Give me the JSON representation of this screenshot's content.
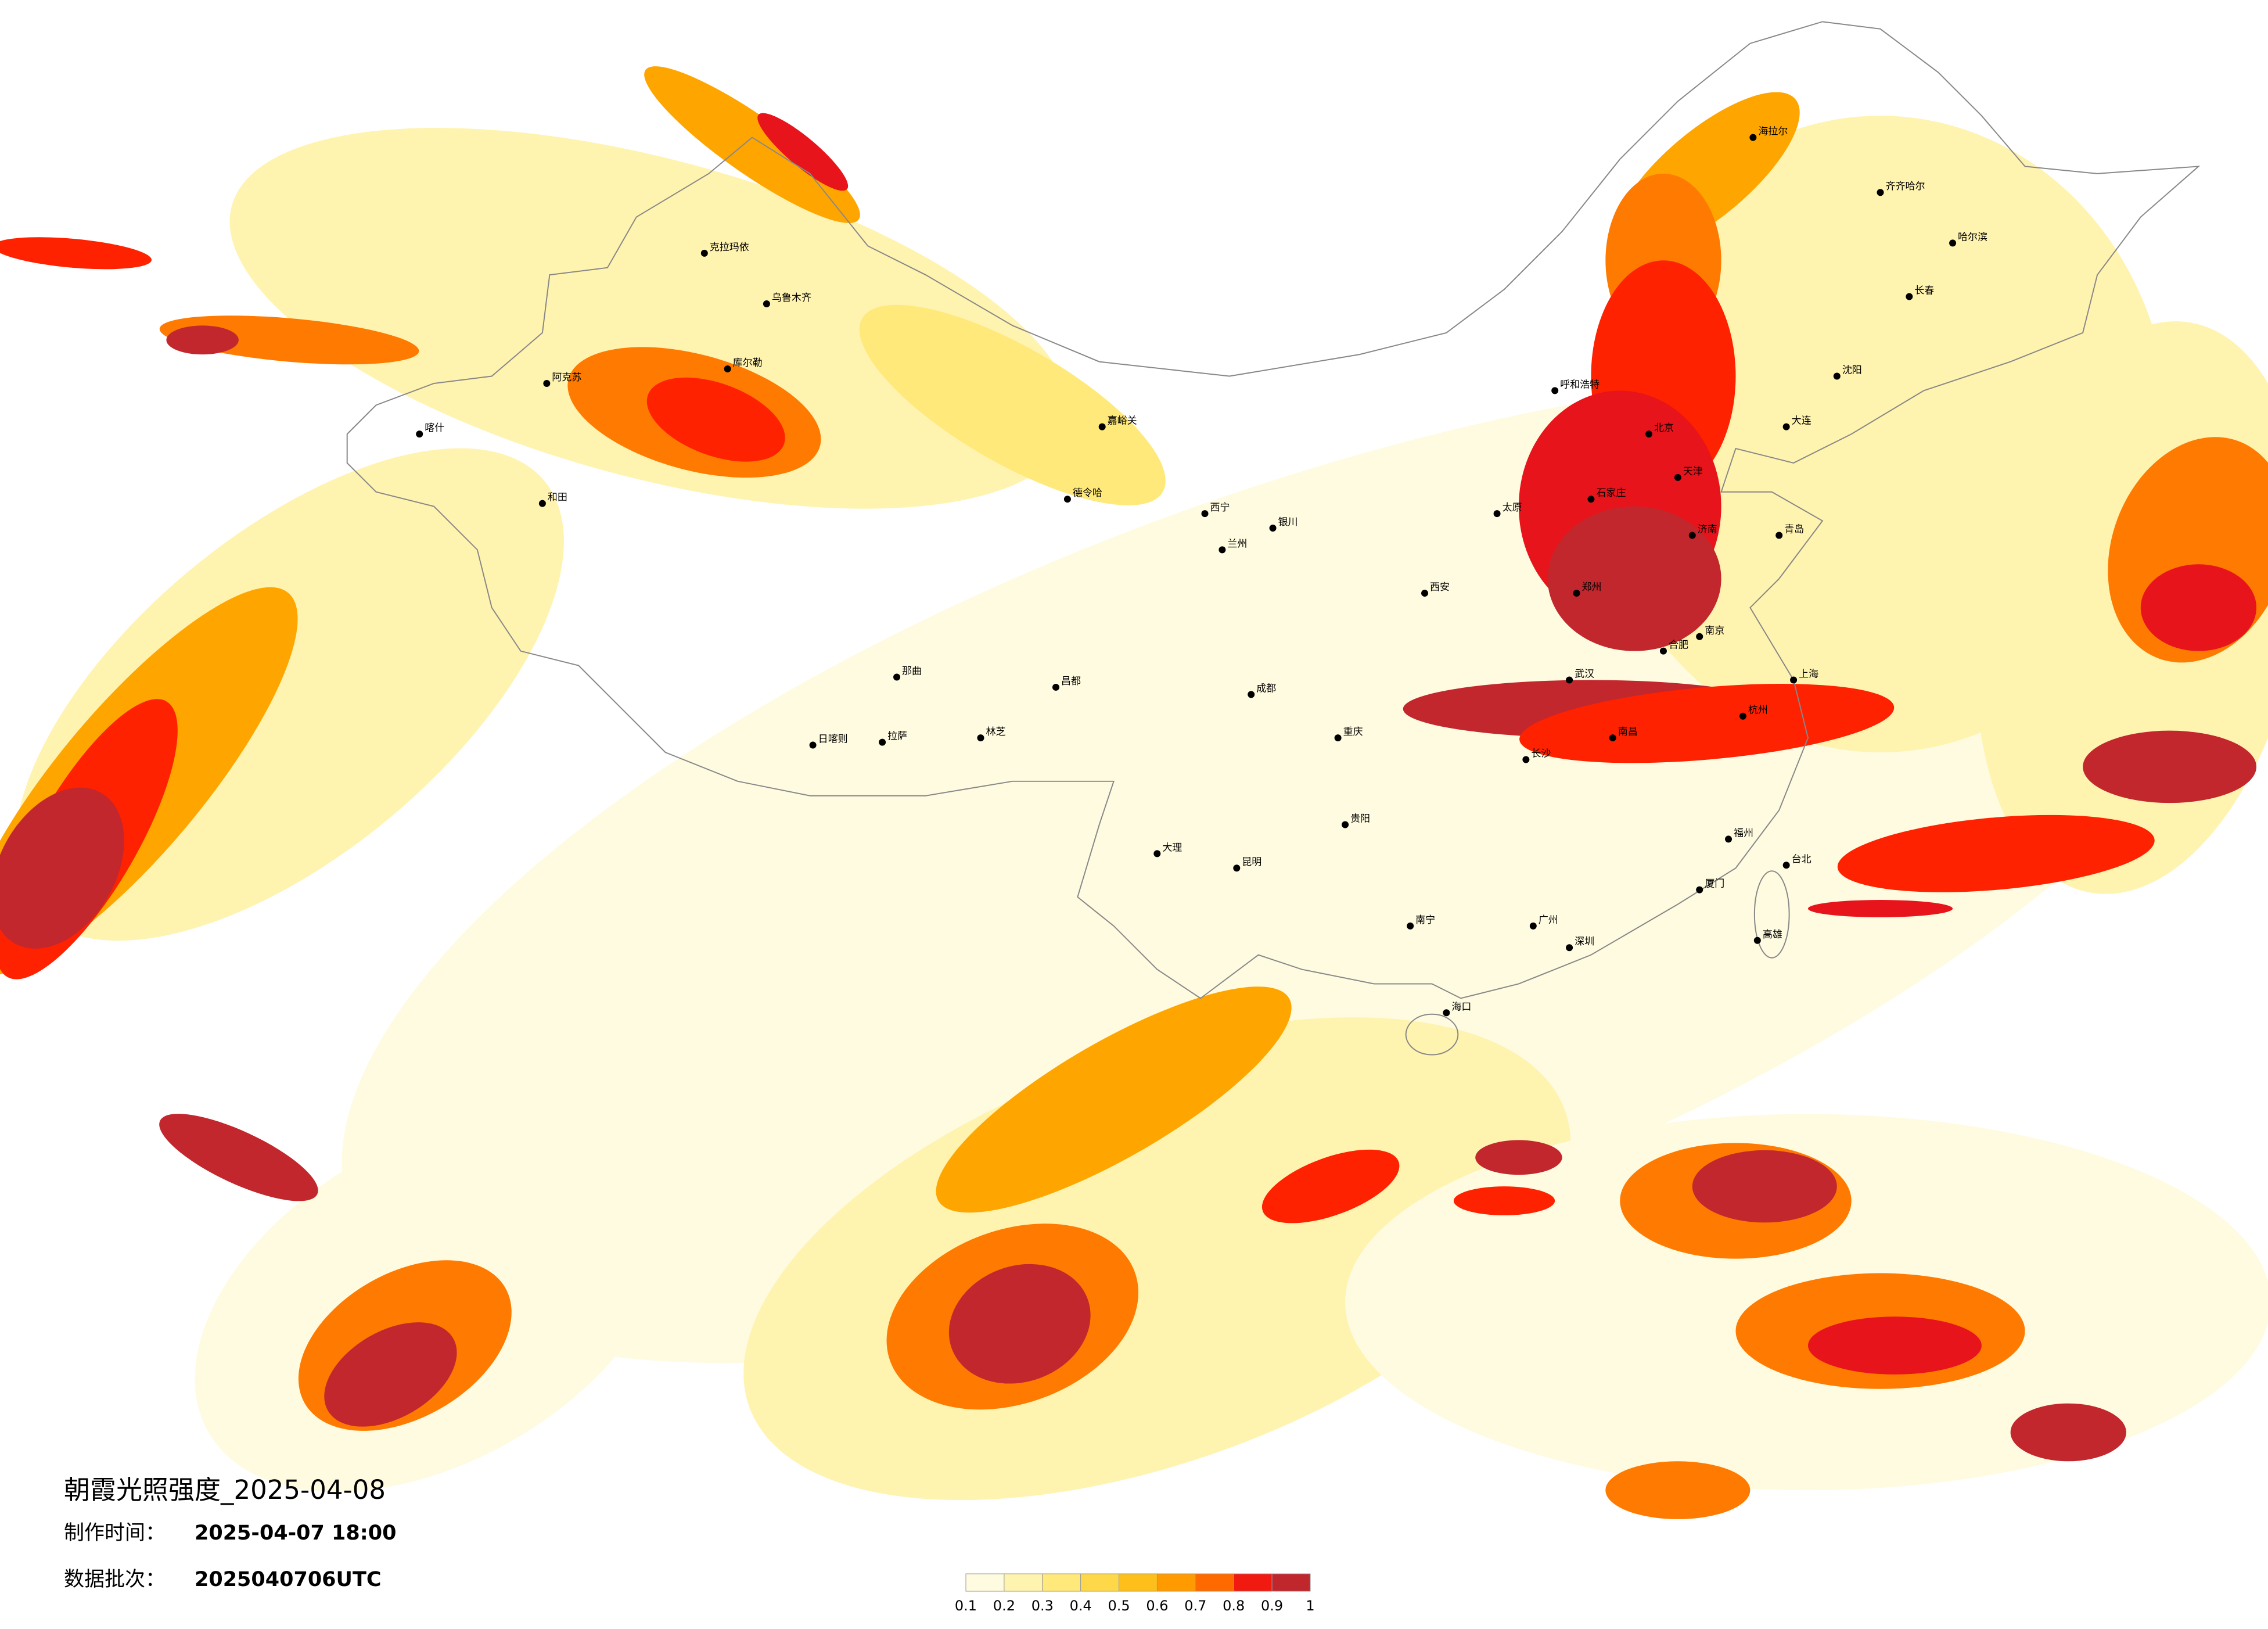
{
  "map": {
    "title": "朝霞光照强度_2025-04-08",
    "production_time": {
      "label": "制作时间：",
      "value": "2025-04-07 18:00"
    },
    "batch": {
      "label": "数据批次：",
      "value": "2025040706UTC"
    },
    "legend": {
      "ticks": [
        0.1,
        0.2,
        0.3,
        0.4,
        0.5,
        0.6,
        0.7,
        0.8,
        0.9,
        1
      ],
      "colors": [
        "#fffbe0",
        "#fff3b0",
        "#ffe97a",
        "#ffd84a",
        "#ffbf1a",
        "#ff9a00",
        "#ff6a00",
        "#f01a10",
        "#c0272d"
      ]
    },
    "cities": [
      "克拉玛依",
      "乌鲁木齐",
      "库尔勒",
      "阿克苏",
      "喀什",
      "和田",
      "德令哈",
      "日喀则",
      "拉萨",
      "林芝",
      "那曲",
      "昌都",
      "嘉峪关",
      "西宁",
      "兰州",
      "银川",
      "呼和浩特",
      "海拉尔",
      "齐齐哈尔",
      "哈尔滨",
      "长春",
      "沈阳",
      "大连",
      "北京",
      "天津",
      "石家庄",
      "太原",
      "济南",
      "青岛",
      "郑州",
      "西安",
      "武汉",
      "南京",
      "上海",
      "杭州",
      "合肥",
      "长沙",
      "南昌",
      "福州",
      "厦门",
      "广州",
      "深圳",
      "南宁",
      "海口",
      "贵阳",
      "昆明",
      "成都",
      "重庆",
      "大理",
      "台北",
      "高雄"
    ]
  }
}
